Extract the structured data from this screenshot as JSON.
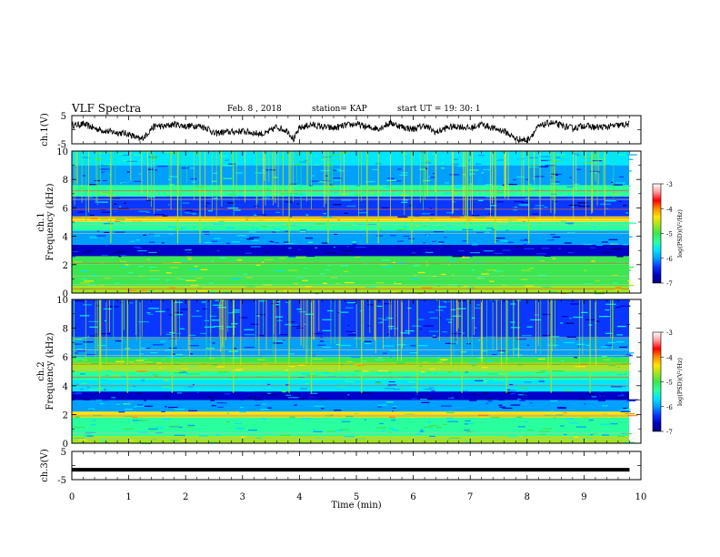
{
  "header": {
    "title": "VLF Spectra",
    "date": "Feb. 8 , 2018",
    "station": "station= KAP",
    "start_ut": "start UT = 19: 30: 1"
  },
  "colormap": [
    "#00007a",
    "#0000c8",
    "#0a37ff",
    "#00a0ff",
    "#00e6ff",
    "#2aff9e",
    "#3ce650",
    "#a0e61e",
    "#ffe600",
    "#ff8c00",
    "#ff0000",
    "#ff9a9a",
    "#ffffff"
  ],
  "chart_data": [
    {
      "type": "line",
      "panel": "ch1-waveform",
      "ylabel": "ch.1(V)",
      "ylim": [
        -5,
        5
      ],
      "yticks": [
        "5",
        "-5"
      ],
      "xlim": [
        0,
        10
      ],
      "color": "#000000",
      "description": "noisy voltage trace mostly around 0 to +3 V with dips near 1.2, 3.9, 7.8 min",
      "x": [
        0,
        0.2,
        0.4,
        0.6,
        0.8,
        1.0,
        1.1,
        1.2,
        1.3,
        1.4,
        1.5,
        1.6,
        1.8,
        2.0,
        2.2,
        2.4,
        2.5,
        2.6,
        2.8,
        3.0,
        3.2,
        3.4,
        3.6,
        3.8,
        3.9,
        4.0,
        4.2,
        4.4,
        4.6,
        4.8,
        5.0,
        5.2,
        5.4,
        5.6,
        5.8,
        6.0,
        6.2,
        6.4,
        6.6,
        6.8,
        7.0,
        7.2,
        7.4,
        7.6,
        7.8,
        8.0,
        8.2,
        8.4,
        8.6,
        8.8,
        9.0,
        9.2,
        9.4,
        9.6,
        9.8
      ],
      "y": [
        1.5,
        2.0,
        0.5,
        -0.5,
        -1.0,
        -1.5,
        -2.5,
        -3.5,
        -2.0,
        0.5,
        1.5,
        1.0,
        2.0,
        1.2,
        1.5,
        0.5,
        -1.5,
        -1.0,
        -0.8,
        -0.5,
        -1.2,
        -1.5,
        1.0,
        -0.5,
        -3.5,
        0.5,
        1.8,
        1.0,
        0.5,
        1.5,
        2.0,
        0.8,
        0.5,
        2.5,
        1.0,
        0.2,
        1.5,
        -1.0,
        0.8,
        1.2,
        0.5,
        2.0,
        0.5,
        -0.5,
        -3.2,
        -3.8,
        1.0,
        2.5,
        1.5,
        0.5,
        1.5,
        0.8,
        1.0,
        1.5,
        2.0
      ]
    },
    {
      "type": "heatmap",
      "panel": "ch1-spectrogram",
      "ylabel_line1": "ch.1",
      "ylabel_line2": "Frequency (kHz)",
      "ylim": [
        0,
        10
      ],
      "xlim": [
        0,
        10
      ],
      "yticks": [
        "0",
        "2",
        "4",
        "6",
        "8",
        "10"
      ],
      "colorbar": {
        "range": [
          -7,
          -3
        ],
        "ticks": [
          "-3",
          "-4",
          "-5",
          "-6",
          "-7"
        ],
        "label": "log(PSD)(V²/Hz)"
      },
      "band_log_psd": [
        {
          "f": [
            0.0,
            0.5
          ],
          "v": -4.6
        },
        {
          "f": [
            0.5,
            1.0
          ],
          "v": -4.9
        },
        {
          "f": [
            1.0,
            2.0
          ],
          "v": -5.1
        },
        {
          "f": [
            2.0,
            2.6
          ],
          "v": -5.0
        },
        {
          "f": [
            2.6,
            3.4
          ],
          "v": -6.6
        },
        {
          "f": [
            3.4,
            4.4
          ],
          "v": -6.1
        },
        {
          "f": [
            4.4,
            5.0
          ],
          "v": -5.4
        },
        {
          "f": [
            5.0,
            5.4
          ],
          "v": -4.5
        },
        {
          "f": [
            5.4,
            6.8
          ],
          "v": -6.3
        },
        {
          "f": [
            6.8,
            7.6
          ],
          "v": -5.2
        },
        {
          "f": [
            7.6,
            9.0
          ],
          "v": -6.0
        },
        {
          "f": [
            9.0,
            10.0
          ],
          "v": -5.6
        }
      ],
      "harmonic_lines_khz": [
        0.3,
        0.6,
        1.2,
        2.1,
        4.2,
        4.8,
        5.1,
        5.3,
        5.9,
        6.6,
        7.2
      ],
      "spike_times_min": [
        0.7,
        1.9,
        2.3,
        3.9,
        4.6,
        5.3,
        5.5,
        6.1,
        7.1,
        7.6,
        8.2
      ]
    },
    {
      "type": "heatmap",
      "panel": "ch2-spectrogram",
      "ylabel_line1": "ch.2",
      "ylabel_line2": "Frequency (kHz)",
      "ylim": [
        0,
        10
      ],
      "xlim": [
        0,
        10
      ],
      "yticks": [
        "0",
        "2",
        "4",
        "6",
        "8",
        "10"
      ],
      "colorbar": {
        "range": [
          -7,
          -3
        ],
        "ticks": [
          "-3",
          "-4",
          "-5",
          "-6",
          "-7"
        ],
        "label": "log(PSD)(V²/Hz)"
      },
      "band_log_psd": [
        {
          "f": [
            0.0,
            0.5
          ],
          "v": -4.8
        },
        {
          "f": [
            0.5,
            1.8
          ],
          "v": -5.5
        },
        {
          "f": [
            1.8,
            2.2
          ],
          "v": -4.5
        },
        {
          "f": [
            2.2,
            3.0
          ],
          "v": -6.1
        },
        {
          "f": [
            3.0,
            3.6
          ],
          "v": -6.6
        },
        {
          "f": [
            3.6,
            4.4
          ],
          "v": -5.7
        },
        {
          "f": [
            4.4,
            5.0
          ],
          "v": -5.3
        },
        {
          "f": [
            5.0,
            5.6
          ],
          "v": -4.7
        },
        {
          "f": [
            5.6,
            6.0
          ],
          "v": -5.0
        },
        {
          "f": [
            6.0,
            7.4
          ],
          "v": -6.0
        },
        {
          "f": [
            7.4,
            10.0
          ],
          "v": -6.2
        }
      ],
      "harmonic_lines_khz": [
        0.3,
        0.7,
        1.9,
        2.0,
        4.0,
        4.6,
        5.2,
        5.5,
        6.1,
        6.5,
        7.3
      ],
      "spike_times_min": [
        0.5,
        1.0,
        1.8,
        2.9,
        3.9,
        4.3,
        5.2,
        6.2,
        7.0,
        7.8,
        8.6,
        9.3
      ]
    },
    {
      "type": "line",
      "panel": "ch3-waveform",
      "ylabel": "ch.3(V)",
      "ylim": [
        -5,
        5
      ],
      "yticks": [
        "5",
        "-5"
      ],
      "xlim": [
        0,
        10
      ],
      "x": [
        0,
        9.8
      ],
      "y": [
        -1.5,
        -1.5
      ]
    }
  ],
  "x_axis": {
    "label": "Time (min)",
    "ticks": [
      "0",
      "1",
      "2",
      "3",
      "4",
      "5",
      "6",
      "7",
      "8",
      "9",
      "10"
    ]
  }
}
